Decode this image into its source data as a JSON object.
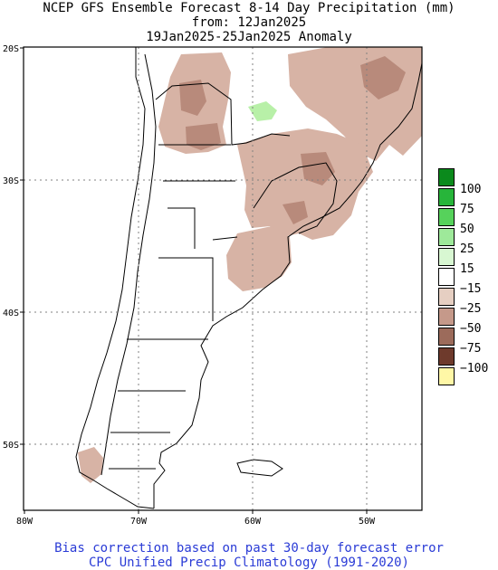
{
  "title": {
    "line1": "NCEP GFS Ensemble Forecast 8-14 Day Precipitation (mm)",
    "line2": "from: 12Jan2025",
    "line3": "19Jan2025-25Jan2025 Anomaly"
  },
  "axes": {
    "lat_labels": [
      "20S",
      "30S",
      "40S",
      "50S"
    ],
    "lon_labels": [
      "80W",
      "70W",
      "60W",
      "50W"
    ]
  },
  "legend": {
    "labels": [
      "100",
      "75",
      "50",
      "25",
      "15",
      "−15",
      "−25",
      "−50",
      "−75",
      "−100"
    ],
    "colors": [
      "#0b8a1c",
      "#27b53a",
      "#56d25b",
      "#9ee99a",
      "#d8f7d2",
      "#ffffff",
      "#e6cfc2",
      "#c5998a",
      "#9c6b5b",
      "#6e3a2c",
      "#fff7a6"
    ]
  },
  "anomaly_colors": {
    "light_brown": "#d7b3a5",
    "mid_brown": "#b88a7b",
    "dark_brown": "#8e5e51",
    "light_green": "#b8f0a8"
  },
  "footer": {
    "line1": "Bias correction based on past 30-day forecast error",
    "line2": "CPC Unified Precip Climatology (1991-2020)"
  }
}
